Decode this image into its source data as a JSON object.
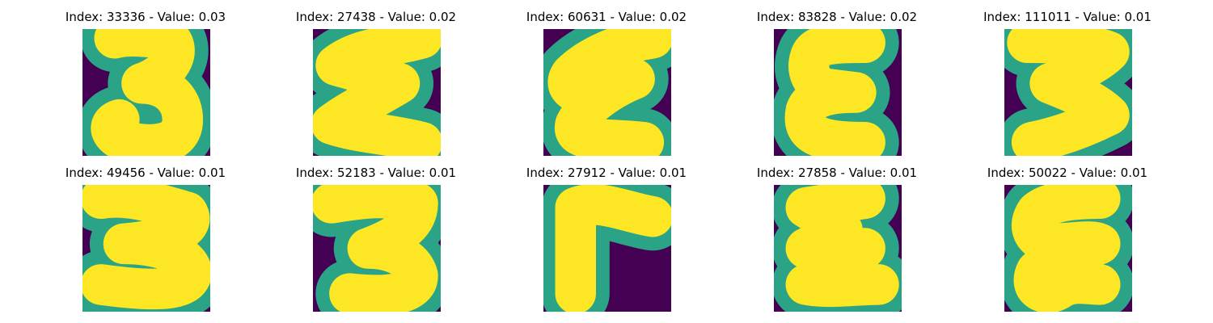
{
  "figure": {
    "panels": [
      {
        "title": "Index: 33336 - Value: 0.03",
        "image": "handwritten digit 3 (viridis colormap)"
      },
      {
        "title": "Index: 27438 - Value: 0.02",
        "image": "handwritten zigzag 3/Σ shape (viridis colormap)"
      },
      {
        "title": "Index: 60631 - Value: 0.02",
        "image": "handwritten ε-like shape (viridis colormap)"
      },
      {
        "title": "Index: 83828 - Value: 0.02",
        "image": "handwritten ε shape (viridis colormap)"
      },
      {
        "title": "Index: 111011 - Value: 0.01",
        "image": "handwritten zigzag 3 shape (viridis colormap)"
      },
      {
        "title": "Index: 49456 - Value: 0.01",
        "image": "handwritten digit 3 (viridis colormap)"
      },
      {
        "title": "Index: 52183 - Value: 0.01",
        "image": "handwritten digit 3 (viridis colormap)"
      },
      {
        "title": "Index: 27912 - Value: 0.01",
        "image": "handwritten Γ-like shape (viridis colormap)"
      },
      {
        "title": "Index: 27858 - Value: 0.01",
        "image": "handwritten Σ-like shape (viridis colormap)"
      },
      {
        "title": "Index: 50022 - Value: 0.01",
        "image": "handwritten ε-like shape (viridis colormap)"
      }
    ]
  },
  "colors": {
    "background": "#440154",
    "stroke_core": "#fde725",
    "stroke_edge": "#2aa386"
  }
}
